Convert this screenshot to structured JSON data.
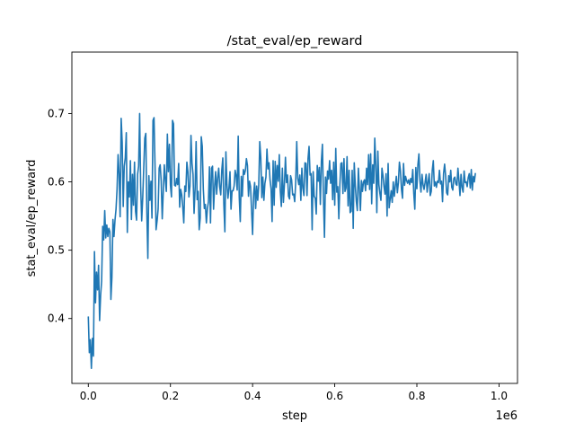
{
  "chart_data": {
    "type": "line",
    "title": "/stat_eval/ep_reward",
    "xlabel": "step",
    "ylabel": "stat_eval/ep_reward",
    "x_offset_label": "1e6",
    "xlim": [
      -0.04,
      1.045
    ],
    "ylim": [
      0.305,
      0.79
    ],
    "xticks": [
      0.0,
      0.2,
      0.4,
      0.6,
      0.8,
      1.0
    ],
    "xtick_labels": [
      "0.0",
      "0.2",
      "0.4",
      "0.6",
      "0.8",
      "1.0"
    ],
    "yticks": [
      0.4,
      0.5,
      0.6,
      0.7
    ],
    "ytick_labels": [
      "0.4",
      "0.5",
      "0.6",
      "0.7"
    ],
    "grid": false,
    "line_color": "#1f77b4",
    "series": [
      {
        "x_step": 0.0025,
        "x_start": 0.0,
        "values": [
          0.403,
          0.35,
          0.369,
          0.327,
          0.371,
          0.345,
          0.498,
          0.423,
          0.468,
          0.442,
          0.478,
          0.397,
          0.434,
          0.455,
          0.535,
          0.515,
          0.558,
          0.518,
          0.537,
          0.52,
          0.532,
          0.527,
          0.428,
          0.46,
          0.545,
          0.52,
          0.544,
          0.56,
          0.589,
          0.64,
          0.612,
          0.549,
          0.693,
          0.658,
          0.564,
          0.623,
          0.635,
          0.672,
          0.526,
          0.6,
          0.578,
          0.631,
          0.545,
          0.611,
          0.566,
          0.629,
          0.557,
          0.544,
          0.611,
          0.623,
          0.7,
          0.594,
          0.543,
          0.577,
          0.62,
          0.664,
          0.671,
          0.556,
          0.488,
          0.609,
          0.573,
          0.601,
          0.547,
          0.69,
          0.694,
          0.623,
          0.53,
          0.543,
          0.56,
          0.62,
          0.625,
          0.601,
          0.546,
          0.585,
          0.625,
          0.603,
          0.586,
          0.67,
          0.615,
          0.655,
          0.595,
          0.578,
          0.69,
          0.685,
          0.595,
          0.594,
          0.605,
          0.596,
          0.627,
          0.563,
          0.589,
          0.581,
          0.563,
          0.54,
          0.594,
          0.586,
          0.629,
          0.615,
          0.578,
          0.594,
          0.668,
          0.627,
          0.611,
          0.554,
          0.589,
          0.659,
          0.574,
          0.586,
          0.53,
          0.547,
          0.666,
          0.652,
          0.59,
          0.561,
          0.567,
          0.54,
          0.561,
          0.571,
          0.622,
          0.54,
          0.62,
          0.623,
          0.56,
          0.593,
          0.615,
          0.582,
          0.606,
          0.62,
          0.593,
          0.581,
          0.617,
          0.635,
          0.567,
          0.527,
          0.644,
          0.596,
          0.576,
          0.591,
          0.615,
          0.56,
          0.587,
          0.587,
          0.594,
          0.617,
          0.609,
          0.588,
          0.667,
          0.578,
          0.542,
          0.608,
          0.579,
          0.618,
          0.611,
          0.617,
          0.634,
          0.624,
          0.579,
          0.601,
          0.593,
          0.558,
          0.523,
          0.582,
          0.599,
          0.561,
          0.594,
          0.573,
          0.595,
          0.659,
          0.635,
          0.577,
          0.607,
          0.573,
          0.598,
          0.607,
          0.648,
          0.619,
          0.628,
          0.603,
          0.59,
          0.542,
          0.631,
          0.566,
          0.63,
          0.592,
          0.624,
          0.601,
          0.64,
          0.587,
          0.564,
          0.62,
          0.57,
          0.596,
          0.636,
          0.599,
          0.61,
          0.579,
          0.575,
          0.609,
          0.603,
          0.581,
          0.582,
          0.571,
          0.6,
          0.659,
          0.605,
          0.596,
          0.61,
          0.573,
          0.62,
          0.591,
          0.58,
          0.628,
          0.627,
          0.58,
          0.634,
          0.652,
          0.61,
          0.612,
          0.53,
          0.615,
          0.579,
          0.576,
          0.553,
          0.624,
          0.601,
          0.621,
          0.567,
          0.63,
          0.655,
          0.577,
          0.519,
          0.607,
          0.583,
          0.616,
          0.604,
          0.631,
          0.598,
          0.617,
          0.574,
          0.629,
          0.566,
          0.649,
          0.585,
          0.593,
          0.546,
          0.596,
          0.627,
          0.628,
          0.583,
          0.634,
          0.586,
          0.591,
          0.637,
          0.565,
          0.617,
          0.555,
          0.557,
          0.617,
          0.532,
          0.628,
          0.595,
          0.572,
          0.558,
          0.62,
          0.59,
          0.558,
          0.602,
          0.586,
          0.6,
          0.603,
          0.587,
          0.62,
          0.596,
          0.64,
          0.589,
          0.641,
          0.568,
          0.625,
          0.598,
          0.664,
          0.624,
          0.555,
          0.645,
          0.596,
          0.583,
          0.573,
          0.62,
          0.609,
          0.593,
          0.582,
          0.612,
          0.55,
          0.627,
          0.562,
          0.575,
          0.587,
          0.57,
          0.6,
          0.579,
          0.594,
          0.608,
          0.584,
          0.599,
          0.629,
          0.616,
          0.589,
          0.576,
          0.627,
          0.595,
          0.608,
          0.602,
          0.598,
          0.603,
          0.596,
          0.605,
          0.599,
          0.618,
          0.583,
          0.56,
          0.621,
          0.59,
          0.625,
          0.641,
          0.601,
          0.585,
          0.611,
          0.596,
          0.589,
          0.599,
          0.611,
          0.585,
          0.6,
          0.612,
          0.58,
          0.586,
          0.617,
          0.631,
          0.594,
          0.6,
          0.592,
          0.601,
          0.599,
          0.617,
          0.597,
          0.601,
          0.571,
          0.612,
          0.626,
          0.609,
          0.584,
          0.581,
          0.609,
          0.6,
          0.617,
          0.592,
          0.588,
          0.605,
          0.607,
          0.597,
          0.595,
          0.62,
          0.602,
          0.58,
          0.611,
          0.592,
          0.585,
          0.616,
          0.599,
          0.6,
          0.593,
          0.606,
          0.612,
          0.591,
          0.618,
          0.588,
          0.608,
          0.6,
          0.613
        ]
      }
    ]
  }
}
